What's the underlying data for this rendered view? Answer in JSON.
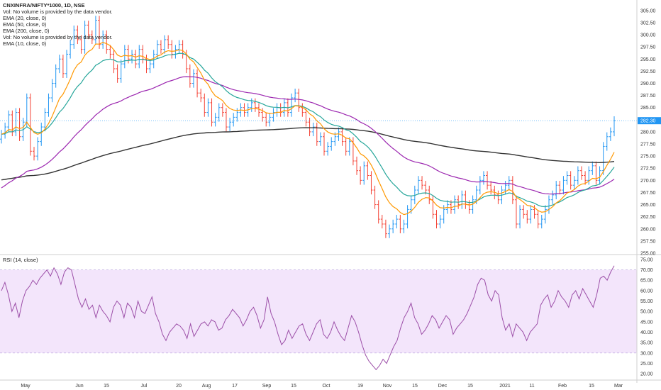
{
  "legend": {
    "symbol": "CNXINFRA/NIFTY*1000, 1D, NSE",
    "vol1": "Vol: No volume is provided by the data vendor.",
    "ema20": "EMA (20, close, 0)",
    "ema50": "EMA (50, close, 0)",
    "ema200": "EMA (200, close, 0)",
    "vol2": "Vol: No volume is provided by the data vendor.",
    "ema10": "EMA (10, close, 0)"
  },
  "rsi_legend": "RSI (14, close)",
  "colors": {
    "up": "#2196f3",
    "down": "#f44336",
    "ema10": "#ff9800",
    "ema20": "#26a69a",
    "ema50": "#9c27b0",
    "ema200": "#333333",
    "rsi_line": "#9c4fa8",
    "rsi_band": "#f3e5fb",
    "price_badge_bg": "#2196f3"
  },
  "chart_data": [
    {
      "type": "candlestick",
      "title": "",
      "ylim": [
        255,
        306
      ],
      "yticks": [
        305.0,
        302.5,
        300.0,
        297.5,
        295.0,
        292.5,
        290.0,
        287.5,
        285.0,
        282.5,
        280.0,
        277.5,
        275.0,
        272.5,
        270.0,
        267.5,
        265.0,
        262.5,
        260.0,
        257.5,
        255.0
      ],
      "ytick_labels": [
        "305.00",
        "302.50",
        "300.00",
        "297.50",
        "295.00",
        "292.50",
        "290.00",
        "287.50",
        "285.00",
        "",
        "280.00",
        "277.50",
        "275.00",
        "272.50",
        "270.00",
        "267.50",
        "265.00",
        "262.50",
        "260.00",
        "257.50",
        "255.00"
      ],
      "last_price_label": "282.30",
      "last_price": 282.3,
      "x_dates": [
        "May",
        "Jun",
        "15",
        "Jul",
        "20",
        "Aug",
        "17",
        "Sep",
        "15",
        "Oct",
        "19",
        "Nov",
        "15",
        "Dec",
        "15",
        "2021",
        "11",
        "Feb",
        "15",
        "Mar"
      ],
      "closes": [
        279.5,
        281,
        283.5,
        280,
        284,
        279,
        282,
        287,
        276,
        275,
        278,
        281,
        284,
        287,
        290,
        293,
        295,
        292,
        296,
        298,
        301,
        299,
        297,
        302,
        300,
        299,
        303,
        298,
        300,
        297,
        296,
        293,
        291,
        294,
        297,
        295,
        296,
        294,
        297,
        295,
        293,
        294,
        296,
        298,
        297,
        299,
        298,
        296,
        297,
        298,
        296,
        293,
        290,
        292,
        288,
        287,
        284,
        286,
        282,
        283,
        285,
        284,
        281,
        282,
        283,
        284,
        285,
        284,
        285,
        286,
        285,
        284,
        283,
        282,
        283,
        284,
        285,
        284,
        286,
        284,
        287,
        288,
        285,
        284,
        282,
        280,
        281,
        278,
        279,
        276,
        277,
        278,
        279,
        280,
        278,
        276,
        278,
        274,
        272,
        270,
        273,
        271,
        268,
        265,
        262,
        261,
        259,
        260,
        261,
        262,
        260,
        261,
        264,
        266,
        268,
        270,
        269,
        268,
        266,
        263,
        261,
        262,
        264,
        265,
        264,
        266,
        265,
        267,
        265,
        264,
        266,
        268,
        270,
        271,
        269,
        268,
        267,
        266,
        268,
        269,
        270,
        266,
        261,
        264,
        263,
        262,
        264,
        263,
        261,
        262,
        264,
        266,
        267,
        269,
        268,
        270,
        271,
        269,
        270,
        272,
        271,
        270,
        272,
        273,
        270,
        272,
        277,
        279,
        280,
        282.3
      ]
    },
    {
      "type": "line",
      "title": "",
      "name": "RSI (14, close)",
      "ylim": [
        18,
        76
      ],
      "yticks": [
        75,
        70,
        65,
        60,
        55,
        50,
        45,
        40,
        35,
        30,
        25,
        20
      ],
      "ytick_labels": [
        "75.00",
        "70.00",
        "65.00",
        "60.00",
        "55.00",
        "50.00",
        "45.00",
        "40.00",
        "35.00",
        "30.00",
        "25.00",
        "20.00"
      ],
      "band": [
        30,
        70
      ],
      "values": [
        60,
        64,
        58,
        50,
        54,
        47,
        55,
        60,
        62,
        65,
        63,
        66,
        68,
        70,
        67,
        71,
        68,
        63,
        69,
        71,
        70,
        63,
        56,
        52,
        56,
        51,
        53,
        47,
        53,
        50,
        48,
        45,
        52,
        55,
        53,
        47,
        54,
        52,
        47,
        55,
        50,
        49,
        53,
        57,
        49,
        45,
        39,
        36,
        40,
        42,
        44,
        43,
        41,
        37,
        44,
        38,
        41,
        44,
        45,
        43,
        46,
        45,
        41,
        42,
        46,
        48,
        51,
        49,
        47,
        43,
        46,
        50,
        52,
        48,
        42,
        46,
        57,
        49,
        45,
        39,
        34,
        36,
        41,
        37,
        40,
        43,
        44,
        39,
        36,
        40,
        44,
        46,
        39,
        37,
        40,
        45,
        41,
        38,
        36,
        42,
        48,
        45,
        40,
        34,
        29,
        26,
        24,
        22,
        24,
        27,
        25,
        29,
        33,
        36,
        42,
        47,
        50,
        54,
        47,
        44,
        39,
        41,
        44,
        48,
        46,
        42,
        45,
        48,
        46,
        39,
        42,
        44,
        46,
        49,
        53,
        57,
        63,
        66,
        65,
        58,
        55,
        60,
        58,
        47,
        41,
        44,
        38,
        44,
        42,
        40,
        36,
        40,
        42,
        44,
        53,
        56,
        58,
        52,
        55,
        60,
        57,
        55,
        52,
        58,
        60,
        56,
        61,
        58,
        55,
        52,
        58,
        66,
        67,
        65,
        69,
        72
      ]
    }
  ]
}
